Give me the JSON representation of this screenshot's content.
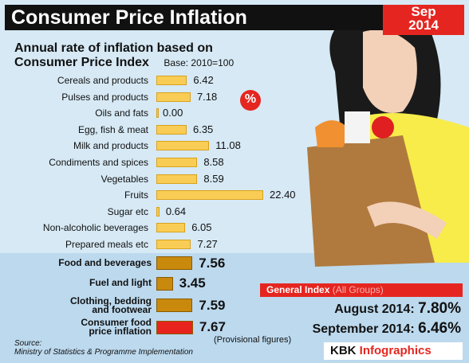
{
  "chart_data": [
    {
      "type": "bar",
      "orientation": "horizontal",
      "title": "Consumer Price Inflation",
      "subtitle": [
        "Annual rate of inflation based on",
        "Consumer Price Index"
      ],
      "note": "Base: 2010=100",
      "categories": [
        "Cereals and products",
        "Pulses and products",
        "Oils and fats",
        "Egg, fish & meat",
        "Milk and products",
        "Condiments and spices",
        "Vegetables",
        "Fruits",
        "Sugar etc",
        "Non-alcoholic beverages",
        "Prepared meals etc"
      ],
      "values": [
        6.42,
        7.18,
        0,
        6.35,
        11.08,
        8.58,
        8.59,
        22.4,
        0.64,
        6.05,
        7.27
      ],
      "value_labels": [
        "6.42",
        "7.18",
        "0.00",
        "6.35",
        "11.08",
        "8.58",
        "8.59",
        "22.40",
        "0.64",
        "6.05",
        "7.27"
      ],
      "color": "#f9cd55"
    },
    {
      "type": "bar",
      "orientation": "horizontal",
      "categories": [
        "Food and beverages",
        "Fuel and light",
        "Clothing, bedding\nand footwear",
        "Consumer food\nprice inflation"
      ],
      "values": [
        7.56,
        3.45,
        7.59,
        7.67
      ],
      "value_labels": [
        "7.56",
        "3.45",
        "7.59",
        "7.67"
      ],
      "colors": [
        "#c9890c",
        "#c9890c",
        "#c9890c",
        "#e8231e"
      ],
      "note": "(Provisional figures)"
    }
  ],
  "date": [
    "Sep",
    "2014"
  ],
  "badge": "%",
  "general_index": {
    "title": "General Index",
    "subtitle": "(All Groups)",
    "rows": [
      {
        "label": "August 2014:",
        "value": "7.80%"
      },
      {
        "label": "September 2014:",
        "value": "6.46%"
      }
    ]
  },
  "source": [
    "Source:",
    "Ministry of Statistics & Programme Implementation"
  ],
  "brand": [
    "KBK",
    "Infographics"
  ]
}
